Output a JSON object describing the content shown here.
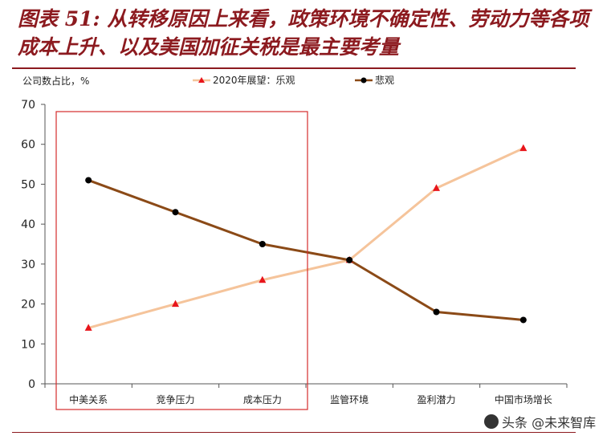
{
  "header": {
    "title": "图表 51: 从转移原因上来看，政策环境不确定性、劳动力等各项成本上升、以及美国加征关税是最主要考量"
  },
  "chart_data": {
    "type": "line",
    "ylabel": "公司数占比，%",
    "ylim": [
      0,
      70
    ],
    "yticks": [
      "0",
      "10",
      "20",
      "30",
      "40",
      "50",
      "60",
      "70"
    ],
    "categories": [
      "中美关系",
      "竞争压力",
      "成本压力",
      "监管环境",
      "盈利潜力",
      "中国市场增长"
    ],
    "series": [
      {
        "name": "2020年展望：乐观",
        "values": [
          14,
          20,
          26,
          31,
          49,
          59
        ],
        "color": "#f5c49b",
        "marker": "triangle",
        "marker_color": "#e8151b"
      },
      {
        "name": "悲观",
        "values": [
          51,
          43,
          35,
          31,
          18,
          16
        ],
        "color": "#8b4a17",
        "marker": "circle",
        "marker_color": "#000000"
      }
    ],
    "grid": false,
    "legend_position": "top",
    "highlight_box_color": "#d42c2c"
  },
  "watermark": {
    "text": "头条 @未来智库"
  }
}
